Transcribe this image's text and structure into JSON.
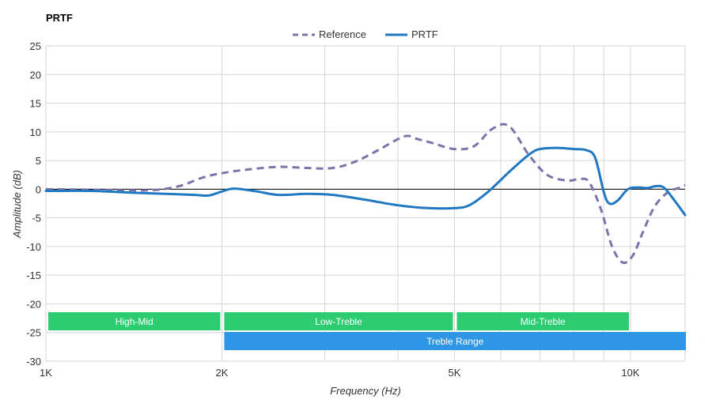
{
  "chart_data": {
    "type": "line",
    "title": "PRTF",
    "xlabel": "Frequency (Hz)",
    "ylabel": "Amplitude (dB)",
    "x_scale": "log",
    "xlim": [
      1000,
      12400
    ],
    "ylim": [
      -30,
      25
    ],
    "x_ticks": [
      {
        "value": 1000,
        "label": "1K"
      },
      {
        "value": 2000,
        "label": "2K"
      },
      {
        "value": 5000,
        "label": "5K"
      },
      {
        "value": 10000,
        "label": "10K"
      }
    ],
    "y_ticks": [
      25,
      20,
      15,
      10,
      5,
      0,
      -5,
      -10,
      -15,
      -20,
      -25,
      -30
    ],
    "grid": true,
    "legend_position": "top-center",
    "series": [
      {
        "name": "Reference",
        "color": "#7a74a8",
        "dash": true,
        "points": [
          [
            1000,
            0
          ],
          [
            1200,
            -0.1
          ],
          [
            1400,
            -0.2
          ],
          [
            1550,
            -0.1
          ],
          [
            1700,
            0.6
          ],
          [
            1850,
            2.0
          ],
          [
            2000,
            2.8
          ],
          [
            2200,
            3.4
          ],
          [
            2500,
            3.9
          ],
          [
            2800,
            3.7
          ],
          [
            3100,
            3.7
          ],
          [
            3400,
            4.9
          ],
          [
            3700,
            6.8
          ],
          [
            4100,
            9.2
          ],
          [
            4300,
            8.8
          ],
          [
            4600,
            8.0
          ],
          [
            5000,
            7.0
          ],
          [
            5400,
            7.5
          ],
          [
            5800,
            10.5
          ],
          [
            6200,
            11.0
          ],
          [
            6700,
            6.0
          ],
          [
            7200,
            2.5
          ],
          [
            7800,
            1.5
          ],
          [
            8200,
            1.8
          ],
          [
            8500,
            1.2
          ],
          [
            8900,
            -3.5
          ],
          [
            9300,
            -10.0
          ],
          [
            9700,
            -12.8
          ],
          [
            10100,
            -11.5
          ],
          [
            10500,
            -7.5
          ],
          [
            11000,
            -3.0
          ],
          [
            11600,
            -0.5
          ],
          [
            12200,
            0.3
          ],
          [
            12400,
            0.7
          ]
        ]
      },
      {
        "name": "PRTF",
        "color": "#1f78c1",
        "dash": false,
        "points": [
          [
            1000,
            -0.3
          ],
          [
            1200,
            -0.3
          ],
          [
            1400,
            -0.6
          ],
          [
            1600,
            -0.8
          ],
          [
            1800,
            -1.0
          ],
          [
            1900,
            -1.1
          ],
          [
            2000,
            -0.4
          ],
          [
            2100,
            0.1
          ],
          [
            2300,
            -0.4
          ],
          [
            2500,
            -1.0
          ],
          [
            2800,
            -0.8
          ],
          [
            3100,
            -1.0
          ],
          [
            3500,
            -1.8
          ],
          [
            4000,
            -2.8
          ],
          [
            4500,
            -3.3
          ],
          [
            5000,
            -3.3
          ],
          [
            5300,
            -2.8
          ],
          [
            5700,
            -0.5
          ],
          [
            6200,
            3.0
          ],
          [
            6700,
            6.0
          ],
          [
            7000,
            7.0
          ],
          [
            7500,
            7.2
          ],
          [
            8000,
            7.0
          ],
          [
            8400,
            6.8
          ],
          [
            8700,
            5.5
          ],
          [
            9000,
            -0.5
          ],
          [
            9200,
            -2.5
          ],
          [
            9500,
            -2.0
          ],
          [
            9900,
            0.0
          ],
          [
            10300,
            0.3
          ],
          [
            10700,
            0.2
          ],
          [
            11000,
            0.5
          ],
          [
            11400,
            0.3
          ],
          [
            11900,
            -2.0
          ],
          [
            12400,
            -4.5
          ]
        ]
      }
    ],
    "bands": [
      {
        "label": "High-Mid",
        "from": 1000,
        "to": 2000,
        "row": 0,
        "color": "#2ecc71"
      },
      {
        "label": "Low-Treble",
        "from": 2000,
        "to": 5000,
        "row": 0,
        "color": "#2ecc71"
      },
      {
        "label": "Mid-Treble",
        "from": 5000,
        "to": 10000,
        "row": 0,
        "color": "#2ecc71"
      },
      {
        "label": "Treble Range",
        "from": 2000,
        "to": 12400,
        "row": 1,
        "color": "#2f96e6"
      }
    ]
  }
}
